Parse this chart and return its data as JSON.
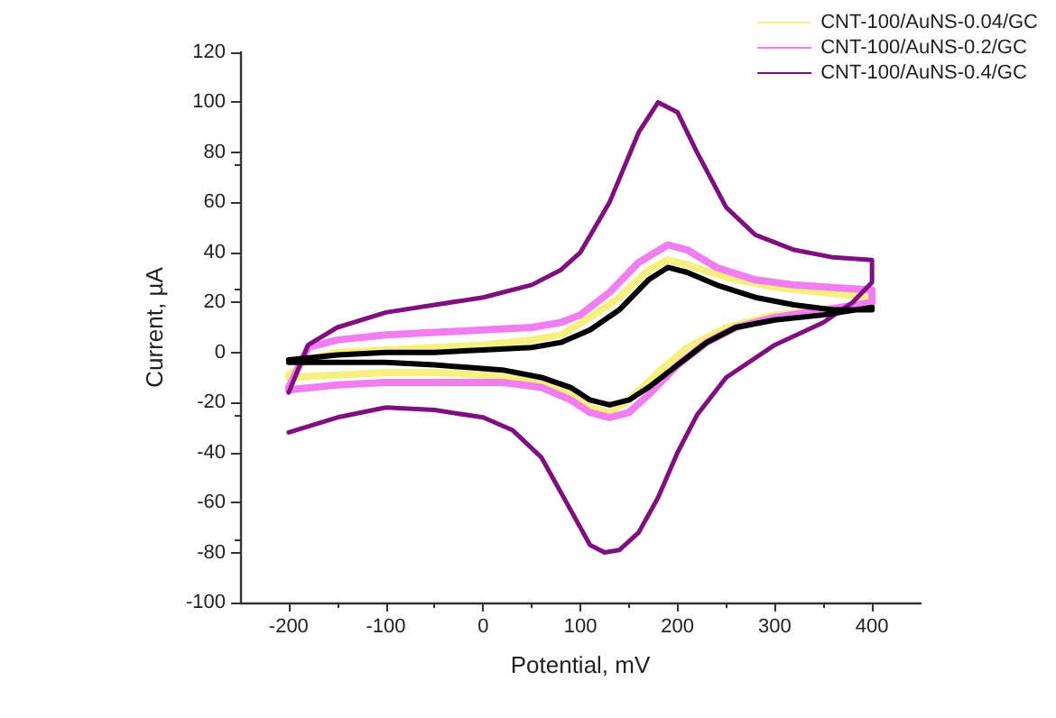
{
  "chart_data": {
    "type": "line",
    "xlabel": "Potential, mV",
    "ylabel": "Current, µA",
    "xlim": [
      -250,
      450
    ],
    "xticks": [
      -200,
      -100,
      0,
      100,
      200,
      300,
      400
    ],
    "ylim": [
      -100,
      120
    ],
    "yticks": [
      -100,
      -80,
      -60,
      -40,
      -20,
      0,
      20,
      40,
      60,
      80,
      100,
      120
    ],
    "grid": false,
    "legend": "top right",
    "series": [
      {
        "name": "CNT-100/AuNS-0.04/GC",
        "color": "#f7f080",
        "x": [
          -200,
          -180,
          -150,
          -100,
          -50,
          0,
          50,
          80,
          110,
          140,
          170,
          190,
          210,
          250,
          300,
          350,
          400,
          400,
          350,
          300,
          250,
          210,
          180,
          150,
          130,
          110,
          90,
          50,
          0,
          -50,
          -100,
          -150,
          -200
        ],
        "values": [
          -9,
          -3,
          0,
          1,
          2,
          3,
          5,
          7,
          14,
          22,
          33,
          37,
          35,
          30,
          26,
          24,
          22,
          18,
          17,
          15,
          10,
          2,
          -8,
          -19,
          -24,
          -22,
          -16,
          -11,
          -9,
          -8,
          -8,
          -9,
          -10
        ]
      },
      {
        "name": "CNT-100/AuNS-0.2/GC",
        "color": "#f07ef0",
        "x": [
          -200,
          -180,
          -150,
          -100,
          -50,
          0,
          50,
          80,
          100,
          130,
          160,
          190,
          210,
          240,
          280,
          320,
          360,
          400,
          400,
          350,
          300,
          260,
          230,
          200,
          170,
          150,
          130,
          110,
          90,
          60,
          20,
          -50,
          -100,
          -150,
          -200
        ],
        "values": [
          -14,
          2,
          5,
          7,
          8,
          9,
          10,
          12,
          15,
          24,
          36,
          43,
          41,
          34,
          29,
          27,
          26,
          25,
          20,
          17,
          14,
          10,
          4,
          -5,
          -17,
          -24,
          -26,
          -24,
          -19,
          -14,
          -12,
          -12,
          -12,
          -13,
          -15
        ]
      },
      {
        "name": "CNT-100/AuNS-0.4/GC",
        "color": "#7f0f7f",
        "x": [
          -200,
          -180,
          -150,
          -100,
          -50,
          0,
          50,
          80,
          100,
          130,
          160,
          180,
          200,
          220,
          250,
          280,
          320,
          360,
          400,
          400,
          380,
          350,
          300,
          250,
          220,
          200,
          180,
          160,
          140,
          125,
          110,
          90,
          60,
          30,
          0,
          -50,
          -100,
          -150,
          -200
        ],
        "values": [
          -16,
          3,
          10,
          16,
          19,
          22,
          27,
          33,
          40,
          60,
          88,
          100,
          96,
          80,
          58,
          47,
          41,
          38,
          37,
          28,
          20,
          12,
          3,
          -10,
          -25,
          -40,
          -58,
          -72,
          -79,
          -80,
          -77,
          -63,
          -42,
          -31,
          -26,
          -23,
          -22,
          -26,
          -32
        ]
      },
      {
        "color": "#000000",
        "x": [
          -200,
          -150,
          -100,
          -50,
          0,
          50,
          80,
          110,
          140,
          170,
          190,
          210,
          240,
          280,
          320,
          360,
          400,
          400,
          350,
          300,
          260,
          230,
          200,
          170,
          150,
          130,
          110,
          90,
          60,
          20,
          -50,
          -100,
          -150,
          -200
        ],
        "values": [
          -3,
          -1,
          0,
          0,
          1,
          2,
          4,
          9,
          17,
          29,
          34,
          32,
          27,
          22,
          19,
          17,
          17,
          18,
          15,
          13,
          10,
          4,
          -5,
          -14,
          -19,
          -21,
          -19,
          -14,
          -10,
          -7,
          -5,
          -4,
          -4,
          -4
        ]
      }
    ]
  }
}
